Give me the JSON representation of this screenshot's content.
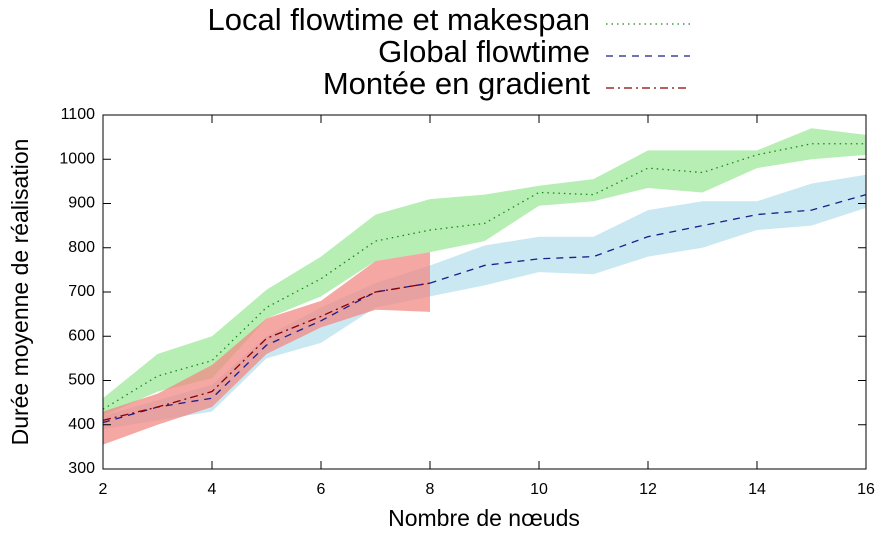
{
  "chart_data": {
    "type": "line",
    "xlabel": "Nombre de nœuds",
    "ylabel": "Durée moyenne de réalisation",
    "x": [
      2,
      3,
      4,
      5,
      6,
      7,
      8,
      9,
      10,
      11,
      12,
      13,
      14,
      15,
      16
    ],
    "xlim": [
      2,
      16
    ],
    "xticks": [
      2,
      4,
      6,
      8,
      10,
      12,
      14,
      16
    ],
    "ylim": [
      300,
      1100
    ],
    "yticks": [
      300,
      400,
      500,
      600,
      700,
      800,
      900,
      1000,
      1100
    ],
    "legend": "top-right",
    "series": [
      {
        "name": "Local flowtime et makespan",
        "color": "#1a8a1a",
        "dash": "dotted",
        "band_color": "#9fe89a",
        "values": [
          435,
          510,
          545,
          665,
          730,
          815,
          840,
          855,
          925,
          920,
          980,
          970,
          1010,
          1035,
          1035
        ],
        "upper": [
          460,
          560,
          600,
          705,
          780,
          875,
          910,
          920,
          940,
          955,
          1020,
          1020,
          1020,
          1070,
          1055
        ],
        "lower": [
          420,
          475,
          505,
          640,
          690,
          770,
          790,
          815,
          895,
          905,
          935,
          925,
          980,
          1000,
          1010
        ]
      },
      {
        "name": "Global flowtime",
        "color": "#1c1c8c",
        "dash": "dashed",
        "band_color": "#b8e0ee",
        "values": [
          405,
          440,
          460,
          580,
          635,
          700,
          720,
          760,
          775,
          780,
          825,
          850,
          875,
          885,
          920
        ],
        "upper": [
          420,
          455,
          490,
          600,
          665,
          720,
          760,
          805,
          825,
          825,
          885,
          905,
          905,
          945,
          965
        ],
        "lower": [
          390,
          410,
          430,
          550,
          585,
          665,
          690,
          715,
          745,
          740,
          780,
          800,
          840,
          850,
          890
        ]
      },
      {
        "name": "Montée en gradient",
        "color": "#8b0000",
        "dash": "dashdot",
        "band_color": "#f08a84",
        "values": [
          410,
          440,
          475,
          595,
          645,
          700,
          720,
          null,
          null,
          null,
          null,
          null,
          null,
          null,
          null
        ],
        "upper": [
          430,
          470,
          535,
          640,
          680,
          770,
          790,
          null,
          null,
          null,
          null,
          null,
          null,
          null,
          null
        ],
        "lower": [
          355,
          400,
          440,
          560,
          620,
          660,
          655,
          null,
          null,
          null,
          null,
          null,
          null,
          null,
          null
        ]
      }
    ]
  }
}
